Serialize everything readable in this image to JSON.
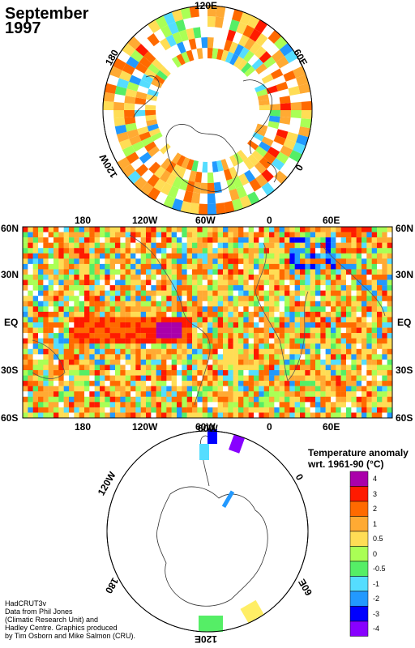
{
  "title": {
    "month": "September",
    "year": "1997"
  },
  "north_polar": {
    "labels": {
      "top": "120E",
      "right": "60E",
      "left": "180",
      "bottom_right": "0",
      "bottom_left": "120W"
    }
  },
  "equatorial": {
    "top_x_labels": [
      "180",
      "120W",
      "60W",
      "0",
      "60E"
    ],
    "bottom_x_labels": [
      "180",
      "120W",
      "60W",
      "0",
      "60E"
    ],
    "left_y_labels": [
      "60N",
      "30N",
      "EQ",
      "30S",
      "60S"
    ],
    "right_y_labels": [
      "60N",
      "30N",
      "EQ",
      "30S",
      "60S"
    ]
  },
  "south_polar": {
    "labels": {
      "top": "60W",
      "right": "0",
      "left": "120W",
      "bottom_right": "60E",
      "bottom_left": "180",
      "bottom": "120E"
    }
  },
  "legend": {
    "title_line1": "Temperature anomaly",
    "title_line2": "wrt. 1961-90  (°C)",
    "bins": [
      {
        "label": "4",
        "color": "#aa00aa"
      },
      {
        "label": "3",
        "color": "#ff1a00"
      },
      {
        "label": "2",
        "color": "#ff6a00"
      },
      {
        "label": "1",
        "color": "#ffaa33"
      },
      {
        "label": "0.5",
        "color": "#ffdd55"
      },
      {
        "label": "0",
        "color": "#aaff55"
      },
      {
        "label": "-0.5",
        "color": "#55ee66"
      },
      {
        "label": "-1",
        "color": "#55ddff"
      },
      {
        "label": "-2",
        "color": "#2299ff"
      },
      {
        "label": "-3",
        "color": "#0000ff"
      },
      {
        "label": "-4",
        "color": "#8800ff"
      }
    ]
  },
  "credit": {
    "line1": "HadCRUT3v",
    "line2": "Data from Phil Jones",
    "line3": "(Climatic Research Unit) and",
    "line4": "Hadley Centre.  Graphics produced",
    "line5": "by Tim Osborn and Mike Salmon (CRU)."
  }
}
